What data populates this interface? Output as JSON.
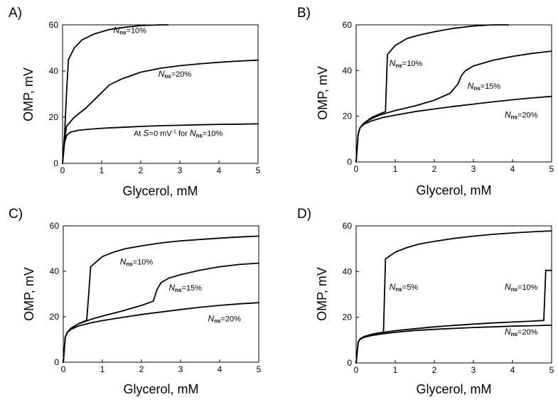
{
  "chart_data": [
    {
      "type": "line",
      "panel_label": "A)",
      "xlabel": "Glycerol, mM",
      "ylabel": "OMP, mV",
      "xlim": [
        0,
        5
      ],
      "ylim": [
        0,
        60
      ],
      "xticks": [
        "0",
        "1",
        "2",
        "3",
        "4",
        "5"
      ],
      "yticks": [
        "0",
        "20",
        "40",
        "60"
      ],
      "series": [
        {
          "x": [
            0,
            0.05,
            0.1,
            0.15,
            0.3,
            0.5,
            0.8,
            1.2,
            1.6,
            2.0,
            2.5,
            2.7
          ],
          "y": [
            0,
            12,
            30,
            45,
            50,
            53.5,
            56,
            58,
            59,
            59.7,
            60,
            60
          ]
        },
        {
          "x": [
            0,
            0.05,
            0.1,
            0.3,
            0.6,
            0.9,
            1.2,
            1.5,
            2.0,
            2.5,
            3.0,
            3.5,
            4.0,
            4.5,
            5.0
          ],
          "y": [
            0,
            10,
            16,
            20,
            24,
            29,
            34,
            36.5,
            39.5,
            41.2,
            42.3,
            43.1,
            43.8,
            44.3,
            44.7
          ]
        },
        {
          "x": [
            0,
            0.05,
            0.1,
            0.2,
            0.4,
            0.7,
            1.0,
            1.5,
            2.0,
            2.5,
            3.0,
            3.5,
            4.0,
            4.5,
            5.0
          ],
          "y": [
            0,
            9,
            12,
            13.5,
            14.3,
            14.8,
            15.2,
            15.6,
            16.0,
            16.3,
            16.5,
            16.7,
            16.9,
            17.0,
            17.1
          ]
        }
      ],
      "annotations": [
        {
          "parts": [
            [
              "N",
              "i"
            ],
            [
              "ns",
              "sub"
            ],
            [
              "=10%",
              ""
            ]
          ],
          "x": 1.3,
          "y": 56.5
        },
        {
          "parts": [
            [
              "N",
              "i"
            ],
            [
              "ns",
              "sub"
            ],
            [
              "=20%",
              ""
            ]
          ],
          "x": 2.45,
          "y": 37.5
        },
        {
          "parts": [
            [
              "At ",
              ""
            ],
            [
              "S",
              "i"
            ],
            [
              "=0 mV",
              ""
            ],
            [
              "-1",
              "sup"
            ],
            [
              " for ",
              ""
            ],
            [
              "N",
              "i"
            ],
            [
              "ns",
              "sub"
            ],
            [
              "=10%",
              ""
            ]
          ],
          "x": 1.82,
          "y": 11.8
        }
      ]
    },
    {
      "type": "line",
      "panel_label": "B)",
      "xlabel": "Glycerol, mM",
      "ylabel": "OMP, mV",
      "xlim": [
        0,
        5
      ],
      "ylim": [
        0,
        60
      ],
      "xticks": [
        "0",
        "1",
        "2",
        "3",
        "4",
        "5"
      ],
      "yticks": [
        "0",
        "20",
        "40",
        "60"
      ],
      "series": [
        {
          "x": [
            0,
            0.05,
            0.1,
            0.2,
            0.4,
            0.6,
            0.75,
            0.8,
            1.0,
            1.3,
            1.6,
            2.0,
            2.5,
            3.0,
            3.5,
            3.9
          ],
          "y": [
            0,
            12,
            15,
            17,
            19.5,
            21,
            22,
            47,
            51,
            54,
            55.5,
            57,
            58.5,
            59.5,
            60,
            60
          ]
        },
        {
          "x": [
            0,
            0.05,
            0.1,
            0.2,
            0.4,
            0.6,
            0.8,
            1.0,
            1.5,
            2.0,
            2.4,
            2.6,
            2.7,
            2.8,
            3.0,
            3.5,
            4.0,
            4.5,
            5.0
          ],
          "y": [
            0,
            12,
            15,
            17,
            19,
            20.5,
            21.5,
            22.5,
            24.5,
            27,
            30,
            34,
            38,
            40,
            42,
            44.5,
            46.2,
            47.5,
            48.5
          ]
        },
        {
          "x": [
            0,
            0.05,
            0.1,
            0.2,
            0.4,
            0.7,
            1.0,
            1.5,
            2.0,
            2.5,
            3.0,
            3.5,
            4.0,
            4.5,
            5.0
          ],
          "y": [
            0,
            12,
            15,
            16.5,
            18,
            19.5,
            20.5,
            22,
            23.2,
            24.3,
            25.3,
            26.3,
            27.2,
            28.0,
            28.7
          ]
        }
      ],
      "annotations": [
        {
          "parts": [
            [
              "N",
              "i"
            ],
            [
              "ns",
              "sub"
            ],
            [
              "=10%",
              ""
            ]
          ],
          "x": 0.85,
          "y": 42
        },
        {
          "parts": [
            [
              "N",
              "i"
            ],
            [
              "ns",
              "sub"
            ],
            [
              "=15%",
              ""
            ]
          ],
          "x": 2.85,
          "y": 32
        },
        {
          "parts": [
            [
              "N",
              "i"
            ],
            [
              "ns",
              "sub"
            ],
            [
              "=20%",
              ""
            ]
          ],
          "x": 3.8,
          "y": 19.5
        }
      ]
    },
    {
      "type": "line",
      "panel_label": "C)",
      "xlabel": "Glycerol, mM",
      "ylabel": "OMP, mV",
      "xlim": [
        0,
        5
      ],
      "ylim": [
        0,
        60
      ],
      "xticks": [
        "0",
        "1",
        "2",
        "3",
        "4",
        "5"
      ],
      "yticks": [
        "0",
        "20",
        "40",
        "60"
      ],
      "series": [
        {
          "x": [
            0,
            0.05,
            0.1,
            0.2,
            0.4,
            0.6,
            0.65,
            0.7,
            1.0,
            1.3,
            1.6,
            2.0,
            2.5,
            3.0,
            3.5,
            4.0,
            4.5,
            5.0
          ],
          "y": [
            0,
            11,
            13,
            15,
            17,
            18.5,
            30,
            42,
            46.5,
            48.5,
            50,
            51.2,
            52.5,
            53.4,
            54,
            54.6,
            55.1,
            55.5
          ]
        },
        {
          "x": [
            0,
            0.05,
            0.1,
            0.2,
            0.4,
            0.7,
            1.0,
            1.5,
            2.0,
            2.3,
            2.4,
            2.5,
            2.7,
            3.0,
            3.5,
            4.0,
            4.5,
            5.0
          ],
          "y": [
            0,
            11,
            13,
            15,
            17,
            18.8,
            20.3,
            22.5,
            25,
            26.8,
            32,
            35,
            37,
            38.5,
            40.5,
            42,
            43,
            43.6
          ]
        },
        {
          "x": [
            0,
            0.05,
            0.1,
            0.2,
            0.4,
            0.7,
            1.0,
            1.5,
            2.0,
            2.5,
            3.0,
            3.5,
            4.0,
            4.5,
            5.0
          ],
          "y": [
            0,
            11,
            13,
            14.5,
            16,
            17.3,
            18.3,
            19.7,
            21,
            22.1,
            23.2,
            24.2,
            25,
            25.7,
            26.2
          ]
        }
      ],
      "annotations": [
        {
          "parts": [
            [
              "N",
              "i"
            ],
            [
              "ns",
              "sub"
            ],
            [
              "=10%",
              ""
            ]
          ],
          "x": 1.45,
          "y": 43
        },
        {
          "parts": [
            [
              "N",
              "i"
            ],
            [
              "ns",
              "sub"
            ],
            [
              "=15%",
              ""
            ]
          ],
          "x": 2.7,
          "y": 31.5
        },
        {
          "parts": [
            [
              "N",
              "i"
            ],
            [
              "ns",
              "sub"
            ],
            [
              "=20%",
              ""
            ]
          ],
          "x": 3.7,
          "y": 18
        }
      ]
    },
    {
      "type": "line",
      "panel_label": "D)",
      "xlabel": "Glycerol, mM",
      "ylabel": "OMP, mV",
      "xlim": [
        0,
        5
      ],
      "ylim": [
        0,
        60
      ],
      "xticks": [
        "0",
        "1",
        "2",
        "3",
        "4",
        "5"
      ],
      "yticks": [
        "0",
        "20",
        "40",
        "60"
      ],
      "series": [
        {
          "x": [
            0,
            0.05,
            0.1,
            0.2,
            0.4,
            0.6,
            0.7,
            0.75,
            1.0,
            1.3,
            1.6,
            2.0,
            2.5,
            3.0,
            3.5,
            4.0,
            4.5,
            5.0
          ],
          "y": [
            0,
            9,
            10.5,
            11.5,
            12.5,
            13.2,
            13.5,
            45.5,
            48.5,
            50.5,
            52,
            53.2,
            54.5,
            55.5,
            56.3,
            56.9,
            57.4,
            57.8
          ]
        },
        {
          "x": [
            0,
            0.05,
            0.1,
            0.2,
            0.4,
            0.7,
            1.0,
            1.5,
            2.0,
            2.5,
            3.0,
            3.5,
            4.0,
            4.5,
            4.8,
            4.85,
            4.9,
            5.0
          ],
          "y": [
            0,
            9,
            10.5,
            11.5,
            12.5,
            13.4,
            14.1,
            15,
            15.8,
            16.4,
            17,
            17.5,
            17.9,
            18.3,
            18.6,
            40.5,
            40.5,
            40.5
          ]
        },
        {
          "x": [
            0,
            0.05,
            0.1,
            0.2,
            0.4,
            0.7,
            1.0,
            1.5,
            2.0,
            2.5,
            3.0,
            3.5,
            4.0,
            4.5,
            5.0
          ],
          "y": [
            0,
            9,
            10.3,
            11.2,
            12,
            12.8,
            13.4,
            14.2,
            14.7,
            15.1,
            15.5,
            15.8,
            16.1,
            16.3,
            16.5
          ]
        }
      ],
      "annotations": [
        {
          "parts": [
            [
              "N",
              "i"
            ],
            [
              "ns",
              "sub"
            ],
            [
              "=5%",
              ""
            ]
          ],
          "x": 0.85,
          "y": 32
        },
        {
          "parts": [
            [
              "N",
              "i"
            ],
            [
              "ns",
              "sub"
            ],
            [
              "=10%",
              ""
            ]
          ],
          "x": 3.8,
          "y": 32
        },
        {
          "parts": [
            [
              "N",
              "i"
            ],
            [
              "ns",
              "sub"
            ],
            [
              "=20%",
              ""
            ]
          ],
          "x": 3.8,
          "y": 12.5
        }
      ]
    }
  ]
}
